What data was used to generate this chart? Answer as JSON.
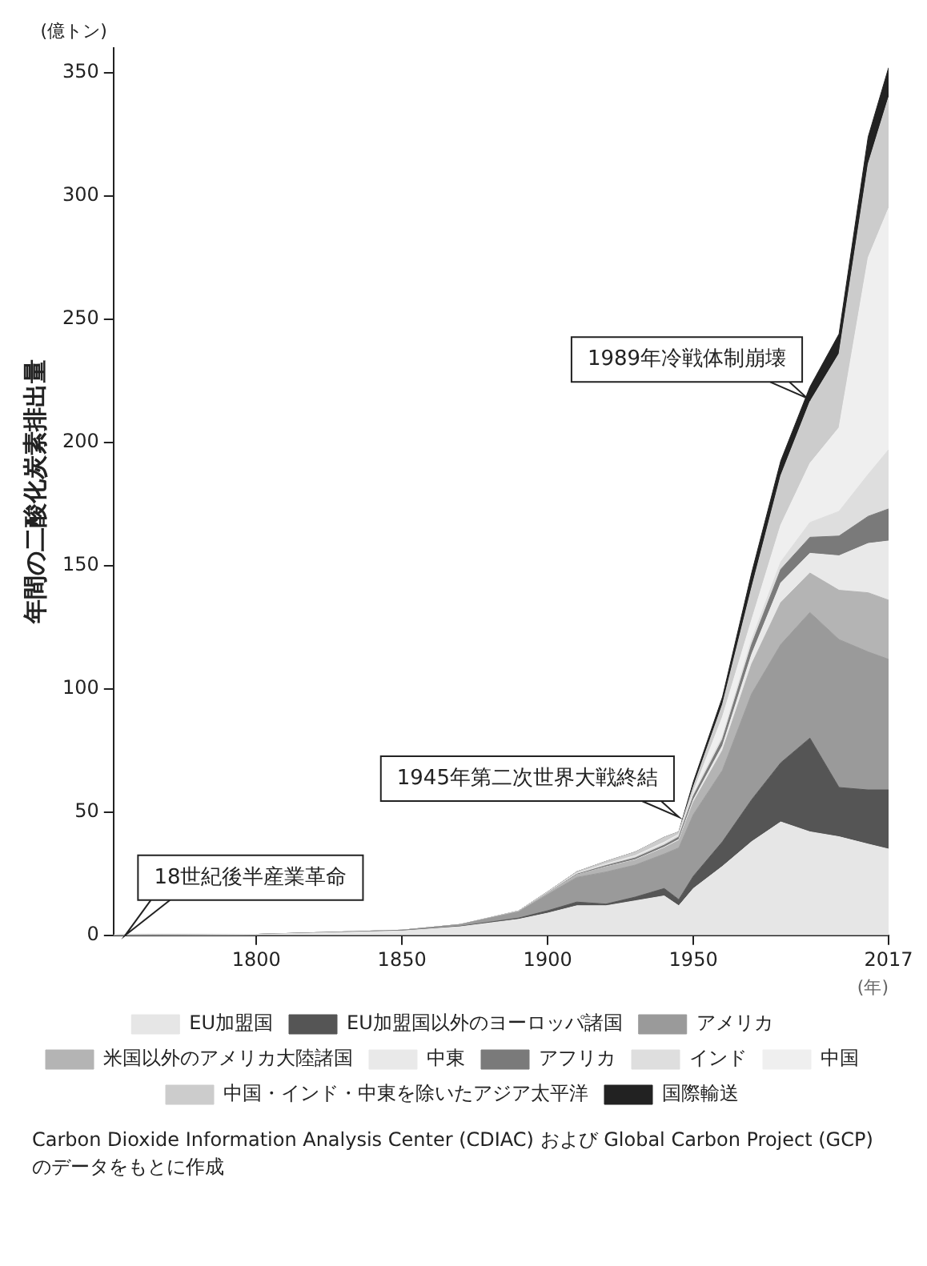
{
  "chart_data": {
    "type": "area",
    "stacked": true,
    "ylabel": "年間の二酸化炭素排出量",
    "xlabel": "(年)",
    "x": [
      1751,
      1800,
      1850,
      1870,
      1890,
      1900,
      1910,
      1920,
      1930,
      1940,
      1945,
      1950,
      1960,
      1970,
      1980,
      1990,
      2000,
      2010,
      2017
    ],
    "xlim": [
      1751,
      2017
    ],
    "xticks": [
      1800,
      1850,
      1900,
      1950,
      2017
    ],
    "ylim": [
      0,
      360
    ],
    "yticks": [
      0,
      50,
      100,
      150,
      200,
      250,
      300,
      350
    ],
    "grid": false,
    "legend": "bottom",
    "series": [
      {
        "name": "EU加盟国",
        "color": "#e6e6e6",
        "values": [
          0.1,
          0.4,
          1.8,
          3.5,
          6.5,
          9,
          12,
          12,
          14,
          16,
          12,
          19,
          28,
          38,
          46,
          42,
          40,
          37,
          35
        ]
      },
      {
        "name": "EU加盟国以外のヨーロッパ諸国",
        "color": "#555555",
        "values": [
          0,
          0,
          0.1,
          0.2,
          0.5,
          1,
          1.5,
          0.7,
          1.5,
          3,
          2.5,
          5,
          10,
          17,
          24,
          38,
          20,
          22,
          24
        ]
      },
      {
        "name": "アメリカ",
        "color": "#9a9a9a",
        "values": [
          0,
          0,
          0.2,
          0.7,
          2.5,
          6.6,
          10,
          13,
          13,
          14,
          21,
          25,
          29,
          43,
          48,
          51,
          60,
          56,
          53
        ]
      },
      {
        "name": "米国以外のアメリカ大陸諸国",
        "color": "#b4b4b4",
        "values": [
          0,
          0,
          0,
          0,
          0.2,
          0.5,
          1,
          2,
          2,
          2.5,
          3,
          5,
          8,
          12,
          17,
          16,
          20,
          24,
          24
        ]
      },
      {
        "name": "中東",
        "color": "#e9e9e9",
        "values": [
          0,
          0,
          0,
          0,
          0,
          0,
          0,
          0.1,
          0.2,
          0.3,
          0.4,
          1,
          2,
          4,
          8,
          8,
          14,
          20,
          24
        ]
      },
      {
        "name": "アフリカ",
        "color": "#7a7a7a",
        "values": [
          0,
          0,
          0,
          0,
          0,
          0.1,
          0.3,
          0.5,
          0.7,
          0.8,
          1,
          1.5,
          2.5,
          4,
          5.5,
          6.5,
          8,
          11,
          13
        ]
      },
      {
        "name": "インド",
        "color": "#dedede",
        "values": [
          0,
          0,
          0,
          0,
          0.1,
          0.2,
          0.4,
          0.5,
          0.6,
          0.7,
          0.8,
          1,
          1.2,
          2,
          3,
          6,
          10,
          17,
          24
        ]
      },
      {
        "name": "中国",
        "color": "#efefef",
        "values": [
          0,
          0,
          0,
          0,
          0,
          0,
          0.1,
          0.2,
          0.3,
          0.5,
          0.3,
          0.8,
          8,
          8,
          15,
          24,
          34,
          88,
          98
        ]
      },
      {
        "name": "中国・インド・中東を除いたアジア太平洋",
        "color": "#cccccc",
        "values": [
          0,
          0,
          0,
          0,
          0.1,
          0.3,
          0.5,
          1,
          1.5,
          2,
          1,
          2,
          5,
          13,
          20,
          25,
          30,
          38,
          45
        ]
      },
      {
        "name": "国際輸送",
        "color": "#222222",
        "values": [
          0,
          0,
          0,
          0,
          0,
          0,
          0,
          0,
          0,
          0,
          0,
          2,
          3,
          6,
          6,
          6,
          8,
          11,
          12
        ]
      }
    ],
    "annotations": [
      "(億トン)",
      {
        "text": "18世紀後半産業革命",
        "x": 1755,
        "y": 0
      },
      {
        "text": "1945年第二次世界大戦終結",
        "x": 1945,
        "y": 48
      },
      {
        "text": "1989年冷戦体制崩壊",
        "x": 1989,
        "y": 218
      },
      "Carbon Dioxide Information Analysis Center (CDIAC) および Global Carbon Project (GCP) のデータをもとに作成"
    ]
  }
}
